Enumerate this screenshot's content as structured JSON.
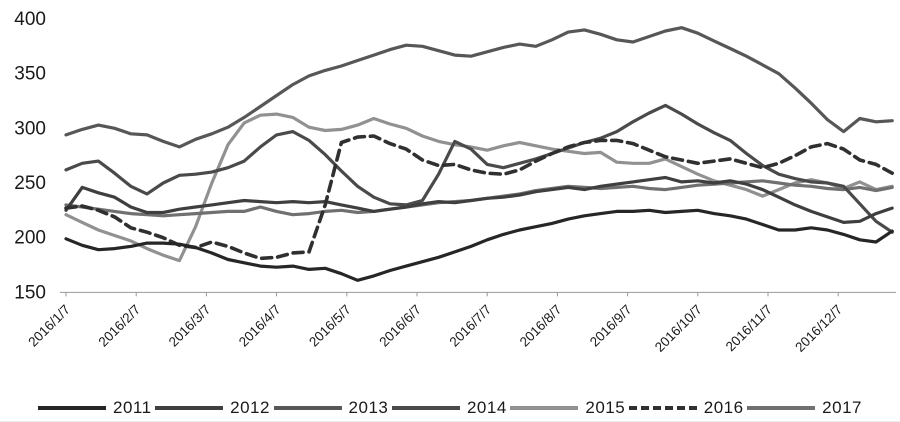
{
  "chart_data": {
    "type": "line",
    "title": "",
    "xlabel": "",
    "ylabel": "",
    "grid": false,
    "legend_position": "bottom",
    "ylim": [
      150,
      400
    ],
    "y_ticks": [
      150,
      200,
      250,
      300,
      350,
      400
    ],
    "x_tick_labels": [
      "2016/1/7",
      "2016/2/7",
      "2016/3/7",
      "2016/4/7",
      "2016/5/7",
      "2016/6/7",
      "2016/7/7",
      "2016/8/7",
      "2016/9/7",
      "2016/10/7",
      "2016/11/7",
      "2016/12/7"
    ],
    "x_resolution": "weekly, 52 points per series spanning the year",
    "axis_color": "#999999",
    "text_color": "#1a1a1a",
    "series": [
      {
        "name": "2011",
        "color": "#262626",
        "dash": false,
        "values": [
          199,
          193,
          189,
          190,
          192,
          195,
          195,
          194,
          191,
          186,
          180,
          177,
          174,
          173,
          174,
          171,
          172,
          167,
          161,
          165,
          170,
          174,
          178,
          182,
          187,
          192,
          198,
          203,
          207,
          210,
          213,
          217,
          220,
          222,
          224,
          224,
          225,
          223,
          224,
          225,
          222,
          220,
          217,
          212,
          207,
          207,
          209,
          207,
          203,
          198,
          196,
          206
        ]
      },
      {
        "name": "2012",
        "color": "#3f3f3f",
        "dash": false,
        "values": [
          225,
          246,
          241,
          237,
          228,
          223,
          223,
          226,
          228,
          230,
          232,
          234,
          233,
          232,
          233,
          232,
          233,
          230,
          227,
          224,
          226,
          228,
          231,
          233,
          232,
          234,
          236,
          237,
          239,
          242,
          244,
          246,
          244,
          247,
          249,
          251,
          253,
          255,
          251,
          252,
          250,
          252,
          249,
          244,
          237,
          230,
          224,
          219,
          214,
          215,
          222,
          227
        ]
      },
      {
        "name": "2013",
        "color": "#575757",
        "dash": false,
        "values": [
          294,
          299,
          303,
          300,
          295,
          294,
          288,
          283,
          290,
          295,
          301,
          310,
          320,
          330,
          340,
          348,
          353,
          357,
          362,
          367,
          372,
          376,
          375,
          371,
          367,
          366,
          370,
          374,
          377,
          375,
          381,
          388,
          390,
          386,
          381,
          379,
          384,
          389,
          392,
          387,
          380,
          373,
          366,
          358,
          350,
          337,
          323,
          308,
          297,
          309,
          306,
          307
        ]
      },
      {
        "name": "2014",
        "color": "#4a4a4a",
        "dash": false,
        "values": [
          262,
          268,
          270,
          259,
          247,
          240,
          250,
          257,
          258,
          260,
          264,
          270,
          283,
          294,
          297,
          289,
          276,
          261,
          247,
          237,
          231,
          230,
          234,
          258,
          288,
          281,
          267,
          264,
          268,
          272,
          277,
          282,
          287,
          291,
          297,
          306,
          314,
          321,
          313,
          304,
          296,
          289,
          277,
          266,
          258,
          254,
          251,
          250,
          247,
          231,
          215,
          205
        ]
      },
      {
        "name": "2015",
        "color": "#919191",
        "dash": false,
        "values": [
          221,
          214,
          207,
          202,
          197,
          190,
          184,
          179,
          210,
          250,
          285,
          305,
          312,
          313,
          310,
          301,
          298,
          299,
          303,
          309,
          304,
          300,
          293,
          288,
          285,
          283,
          280,
          284,
          287,
          284,
          281,
          279,
          277,
          278,
          269,
          268,
          268,
          272,
          265,
          258,
          252,
          248,
          244,
          238,
          244,
          250,
          253,
          250,
          245,
          251,
          244,
          247
        ]
      },
      {
        "name": "2016",
        "color": "#303030",
        "dash": true,
        "values": [
          227,
          229,
          225,
          219,
          209,
          205,
          200,
          193,
          191,
          196,
          192,
          186,
          181,
          182,
          186,
          187,
          230,
          287,
          292,
          293,
          286,
          281,
          271,
          266,
          267,
          262,
          259,
          258,
          262,
          270,
          277,
          283,
          287,
          289,
          289,
          286,
          280,
          274,
          271,
          268,
          270,
          272,
          268,
          264,
          268,
          275,
          283,
          286,
          281,
          271,
          267,
          259
        ]
      },
      {
        "name": "2017",
        "color": "#707070",
        "dash": false,
        "values": [
          230,
          228,
          226,
          224,
          222,
          221,
          220,
          221,
          222,
          223,
          224,
          224,
          228,
          224,
          221,
          222,
          224,
          225,
          223,
          224,
          226,
          228,
          230,
          232,
          233,
          234,
          236,
          238,
          240,
          243,
          245,
          247,
          246,
          245,
          246,
          247,
          245,
          244,
          246,
          248,
          249,
          250,
          251,
          252,
          250,
          248,
          247,
          245,
          244,
          246,
          243,
          246
        ]
      }
    ]
  },
  "legend": {
    "items": [
      "2011",
      "2012",
      "2013",
      "2014",
      "2015",
      "2016",
      "2017"
    ]
  }
}
